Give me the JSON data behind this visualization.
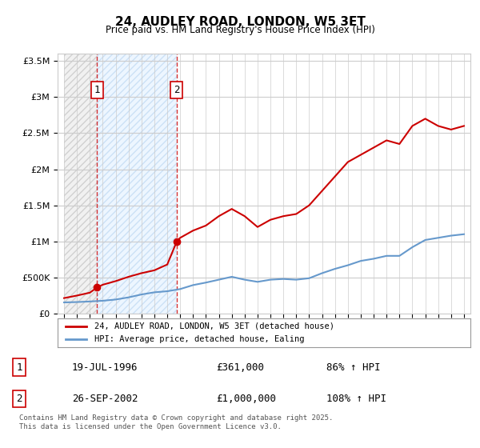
{
  "title": "24, AUDLEY ROAD, LONDON, W5 3ET",
  "subtitle": "Price paid vs. HM Land Registry's House Price Index (HPI)",
  "footer": "Contains HM Land Registry data © Crown copyright and database right 2025.\nThis data is licensed under the Open Government Licence v3.0.",
  "legend_line1": "24, AUDLEY ROAD, LONDON, W5 3ET (detached house)",
  "legend_line2": "HPI: Average price, detached house, Ealing",
  "transaction1_label": "1",
  "transaction1_date": "19-JUL-1996",
  "transaction1_price": "£361,000",
  "transaction1_hpi": "86% ↑ HPI",
  "transaction1_year": 1996.55,
  "transaction1_value": 361000,
  "transaction2_label": "2",
  "transaction2_date": "26-SEP-2002",
  "transaction2_price": "£1,000,000",
  "transaction2_hpi": "108% ↑ HPI",
  "transaction2_year": 2002.74,
  "transaction2_value": 1000000,
  "hatch_region1_start": 1994,
  "hatch_region1_end": 1996.55,
  "hatch_region2_start": 1996.55,
  "hatch_region2_end": 2002.74,
  "ylim": [
    0,
    3600000
  ],
  "xlim": [
    1993.5,
    2025.5
  ],
  "red_color": "#cc0000",
  "blue_color": "#6699cc",
  "hatch_color1": "#dddddd",
  "hatch_color2": "#cce0ff",
  "grid_color": "#cccccc",
  "background_color": "#ffffff",
  "years": [
    1994,
    1995,
    1996,
    1997,
    1998,
    1999,
    2000,
    2001,
    2002,
    2003,
    2004,
    2005,
    2006,
    2007,
    2008,
    2009,
    2010,
    2011,
    2012,
    2013,
    2014,
    2015,
    2016,
    2017,
    2018,
    2019,
    2020,
    2021,
    2022,
    2023,
    2024,
    2025
  ],
  "hpi_values": [
    155000,
    160000,
    168000,
    178000,
    195000,
    225000,
    265000,
    295000,
    310000,
    340000,
    395000,
    430000,
    470000,
    510000,
    470000,
    440000,
    470000,
    480000,
    470000,
    490000,
    560000,
    620000,
    670000,
    730000,
    760000,
    800000,
    800000,
    920000,
    1020000,
    1050000,
    1080000,
    1100000
  ],
  "property_values_x": [
    1994,
    1995,
    1996,
    1996.55,
    1997,
    1998,
    1999,
    2000,
    2001,
    2002,
    2002.74,
    2003,
    2004,
    2005,
    2006,
    2007,
    2008,
    2009,
    2010,
    2011,
    2012,
    2013,
    2014,
    2015,
    2016,
    2017,
    2018,
    2019,
    2020,
    2021,
    2022,
    2023,
    2024,
    2025
  ],
  "property_values_y": [
    215000,
    250000,
    290000,
    361000,
    400000,
    450000,
    510000,
    560000,
    600000,
    680000,
    1000000,
    1050000,
    1150000,
    1220000,
    1350000,
    1450000,
    1350000,
    1200000,
    1300000,
    1350000,
    1380000,
    1500000,
    1700000,
    1900000,
    2100000,
    2200000,
    2300000,
    2400000,
    2350000,
    2600000,
    2700000,
    2600000,
    2550000,
    2600000
  ]
}
